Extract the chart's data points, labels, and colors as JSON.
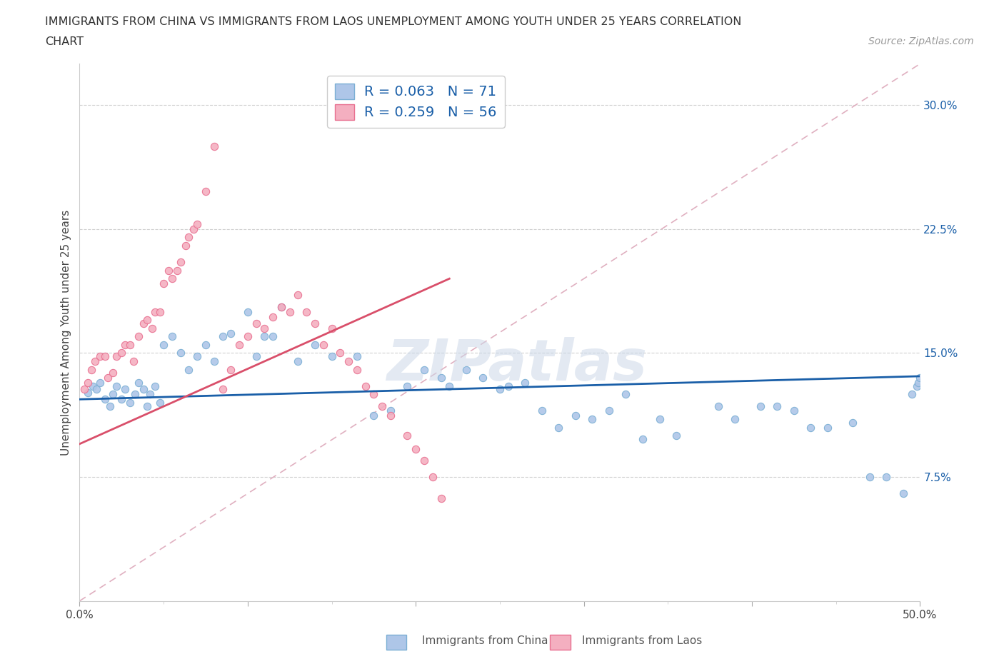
{
  "title_line1": "IMMIGRANTS FROM CHINA VS IMMIGRANTS FROM LAOS UNEMPLOYMENT AMONG YOUTH UNDER 25 YEARS CORRELATION",
  "title_line2": "CHART",
  "source": "Source: ZipAtlas.com",
  "ylabel": "Unemployment Among Youth under 25 years",
  "xlim": [
    0,
    0.5
  ],
  "ylim": [
    0,
    0.325
  ],
  "xtick_positions": [
    0.0,
    0.1,
    0.2,
    0.3,
    0.4,
    0.5
  ],
  "xtick_labels": [
    "0.0%",
    "",
    "",
    "",
    "",
    "50.0%"
  ],
  "ytick_right_vals": [
    0.075,
    0.15,
    0.225,
    0.3
  ],
  "ytick_right_labels": [
    "7.5%",
    "15.0%",
    "22.5%",
    "30.0%"
  ],
  "china_color": "#aec6e8",
  "laos_color": "#f4afc0",
  "china_edge_color": "#7bafd4",
  "laos_edge_color": "#e87090",
  "china_line_color": "#1a5fa8",
  "laos_line_color": "#d94f6a",
  "ref_line_color": "#c8c8c8",
  "legend_text_color": "#1a5fa8",
  "china_R": 0.063,
  "china_N": 71,
  "laos_R": 0.259,
  "laos_N": 56,
  "watermark": "ZIPatlas",
  "china_scatter_x": [
    0.005,
    0.008,
    0.01,
    0.012,
    0.015,
    0.018,
    0.02,
    0.022,
    0.025,
    0.027,
    0.03,
    0.033,
    0.035,
    0.038,
    0.04,
    0.042,
    0.045,
    0.048,
    0.05,
    0.055,
    0.06,
    0.065,
    0.07,
    0.075,
    0.08,
    0.085,
    0.09,
    0.1,
    0.105,
    0.11,
    0.115,
    0.12,
    0.13,
    0.14,
    0.15,
    0.165,
    0.175,
    0.185,
    0.195,
    0.205,
    0.215,
    0.22,
    0.23,
    0.24,
    0.25,
    0.255,
    0.265,
    0.275,
    0.285,
    0.295,
    0.305,
    0.315,
    0.325,
    0.335,
    0.345,
    0.355,
    0.38,
    0.39,
    0.405,
    0.415,
    0.425,
    0.435,
    0.445,
    0.46,
    0.47,
    0.48,
    0.49,
    0.495,
    0.498,
    0.499,
    0.5
  ],
  "china_scatter_y": [
    0.126,
    0.13,
    0.128,
    0.132,
    0.122,
    0.118,
    0.125,
    0.13,
    0.122,
    0.128,
    0.12,
    0.125,
    0.132,
    0.128,
    0.118,
    0.125,
    0.13,
    0.12,
    0.155,
    0.16,
    0.15,
    0.14,
    0.148,
    0.155,
    0.145,
    0.16,
    0.162,
    0.175,
    0.148,
    0.16,
    0.16,
    0.178,
    0.145,
    0.155,
    0.148,
    0.148,
    0.112,
    0.115,
    0.13,
    0.14,
    0.135,
    0.13,
    0.14,
    0.135,
    0.128,
    0.13,
    0.132,
    0.115,
    0.105,
    0.112,
    0.11,
    0.115,
    0.125,
    0.098,
    0.11,
    0.1,
    0.118,
    0.11,
    0.118,
    0.118,
    0.115,
    0.105,
    0.105,
    0.108,
    0.075,
    0.075,
    0.065,
    0.125,
    0.13,
    0.132,
    0.135
  ],
  "laos_scatter_x": [
    0.003,
    0.005,
    0.007,
    0.009,
    0.012,
    0.015,
    0.017,
    0.02,
    0.022,
    0.025,
    0.027,
    0.03,
    0.032,
    0.035,
    0.038,
    0.04,
    0.043,
    0.045,
    0.048,
    0.05,
    0.053,
    0.055,
    0.058,
    0.06,
    0.063,
    0.065,
    0.068,
    0.07,
    0.075,
    0.08,
    0.085,
    0.09,
    0.095,
    0.1,
    0.105,
    0.11,
    0.115,
    0.12,
    0.125,
    0.13,
    0.135,
    0.14,
    0.145,
    0.15,
    0.155,
    0.16,
    0.165,
    0.17,
    0.175,
    0.18,
    0.185,
    0.195,
    0.2,
    0.205,
    0.21,
    0.215
  ],
  "laos_scatter_y": [
    0.128,
    0.132,
    0.14,
    0.145,
    0.148,
    0.148,
    0.135,
    0.138,
    0.148,
    0.15,
    0.155,
    0.155,
    0.145,
    0.16,
    0.168,
    0.17,
    0.165,
    0.175,
    0.175,
    0.192,
    0.2,
    0.195,
    0.2,
    0.205,
    0.215,
    0.22,
    0.225,
    0.228,
    0.248,
    0.275,
    0.128,
    0.14,
    0.155,
    0.16,
    0.168,
    0.165,
    0.172,
    0.178,
    0.175,
    0.185,
    0.175,
    0.168,
    0.155,
    0.165,
    0.15,
    0.145,
    0.14,
    0.13,
    0.125,
    0.118,
    0.112,
    0.1,
    0.092,
    0.085,
    0.075,
    0.062
  ]
}
